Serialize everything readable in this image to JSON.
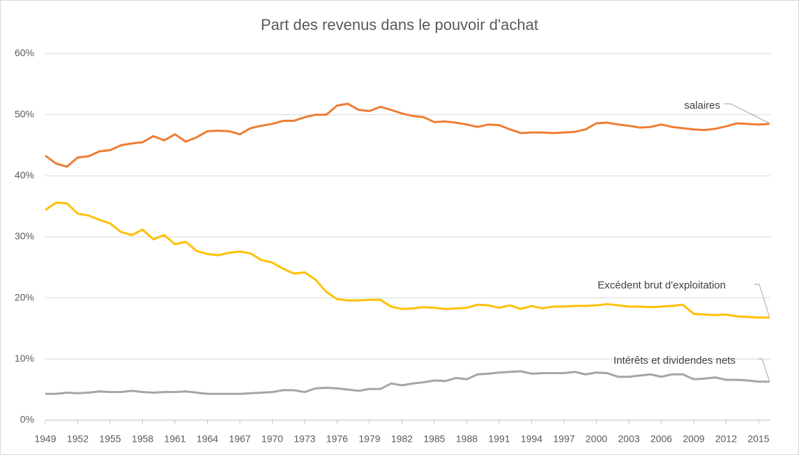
{
  "chart_data": {
    "type": "line",
    "title": "Part des revenus dans le pouvoir d'achat",
    "x": [
      1949,
      1950,
      1951,
      1952,
      1953,
      1954,
      1955,
      1956,
      1957,
      1958,
      1959,
      1960,
      1961,
      1962,
      1963,
      1964,
      1965,
      1966,
      1967,
      1968,
      1969,
      1970,
      1971,
      1972,
      1973,
      1974,
      1975,
      1976,
      1977,
      1978,
      1979,
      1980,
      1981,
      1982,
      1983,
      1984,
      1985,
      1986,
      1987,
      1988,
      1989,
      1990,
      1991,
      1992,
      1993,
      1994,
      1995,
      1996,
      1997,
      1998,
      1999,
      2000,
      2001,
      2002,
      2003,
      2004,
      2005,
      2006,
      2007,
      2008,
      2009,
      2010,
      2011,
      2012,
      2013,
      2014,
      2015,
      2016
    ],
    "series": [
      {
        "name": "salaires",
        "color": "#ED7D31",
        "values": [
          43.3,
          42.0,
          41.5,
          43.0,
          43.2,
          44.0,
          44.2,
          45.0,
          45.3,
          45.5,
          46.5,
          45.8,
          46.8,
          45.6,
          46.3,
          47.3,
          47.4,
          47.3,
          46.8,
          47.8,
          48.2,
          48.5,
          49.0,
          49.0,
          49.6,
          50.0,
          50.0,
          51.5,
          51.8,
          50.8,
          50.6,
          51.3,
          50.8,
          50.2,
          49.8,
          49.6,
          48.8,
          48.9,
          48.7,
          48.4,
          48.0,
          48.4,
          48.3,
          47.6,
          47.0,
          47.1,
          47.1,
          47.0,
          47.1,
          47.2,
          47.6,
          48.6,
          48.7,
          48.4,
          48.2,
          47.9,
          48.0,
          48.4,
          48.0,
          47.8,
          47.6,
          47.5,
          47.7,
          48.1,
          48.6,
          48.5,
          48.4,
          48.5
        ]
      },
      {
        "name": "Excédent brut d'exploitation",
        "color": "#FFC000",
        "values": [
          34.4,
          35.6,
          35.5,
          33.8,
          33.5,
          32.8,
          32.2,
          30.8,
          30.3,
          31.2,
          29.6,
          30.3,
          28.8,
          29.2,
          27.7,
          27.2,
          27.0,
          27.4,
          27.6,
          27.3,
          26.2,
          25.8,
          24.8,
          24.0,
          24.2,
          23.0,
          21.0,
          19.8,
          19.6,
          19.6,
          19.7,
          19.7,
          18.6,
          18.2,
          18.3,
          18.5,
          18.4,
          18.2,
          18.3,
          18.4,
          18.9,
          18.8,
          18.4,
          18.8,
          18.2,
          18.7,
          18.3,
          18.6,
          18.6,
          18.7,
          18.7,
          18.8,
          19.0,
          18.8,
          18.6,
          18.6,
          18.5,
          18.6,
          18.7,
          18.9,
          17.4,
          17.3,
          17.2,
          17.3,
          17.0,
          16.9,
          16.8,
          16.8
        ]
      },
      {
        "name": "Intérêts et dividendes nets",
        "color": "#A5A5A5",
        "values": [
          4.3,
          4.3,
          4.5,
          4.4,
          4.5,
          4.7,
          4.6,
          4.6,
          4.8,
          4.6,
          4.5,
          4.6,
          4.6,
          4.7,
          4.5,
          4.3,
          4.3,
          4.3,
          4.3,
          4.4,
          4.5,
          4.6,
          4.9,
          4.9,
          4.6,
          5.2,
          5.3,
          5.2,
          5.0,
          4.8,
          5.1,
          5.1,
          6.0,
          5.7,
          6.0,
          6.2,
          6.5,
          6.4,
          6.9,
          6.7,
          7.5,
          7.6,
          7.8,
          7.9,
          8.0,
          7.6,
          7.7,
          7.7,
          7.7,
          7.9,
          7.5,
          7.8,
          7.7,
          7.1,
          7.1,
          7.3,
          7.5,
          7.1,
          7.5,
          7.5,
          6.7,
          6.8,
          7.0,
          6.6,
          6.6,
          6.5,
          6.3,
          6.3
        ]
      }
    ],
    "xlim": [
      1949,
      2016.1
    ],
    "xticks": [
      1949,
      1952,
      1955,
      1958,
      1961,
      1964,
      1967,
      1970,
      1973,
      1976,
      1979,
      1982,
      1985,
      1988,
      1991,
      1994,
      1997,
      2000,
      2003,
      2006,
      2009,
      2012,
      2015
    ],
    "ylim": [
      0,
      60
    ],
    "yticks": [
      {
        "value": 0,
        "label": "0%"
      },
      {
        "value": 10,
        "label": "10%"
      },
      {
        "value": 20,
        "label": "20%"
      },
      {
        "value": 30,
        "label": "30%"
      },
      {
        "value": 40,
        "label": "40%"
      },
      {
        "value": 50,
        "label": "50%"
      },
      {
        "value": 60,
        "label": "60%"
      }
    ],
    "grid": true
  }
}
